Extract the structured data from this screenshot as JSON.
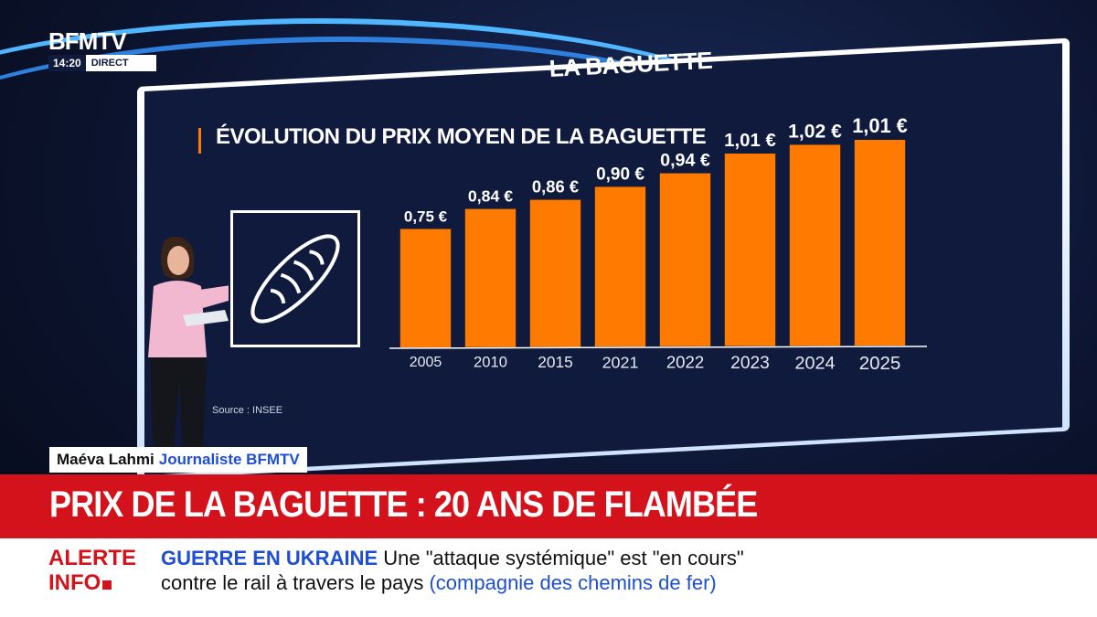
{
  "channel": {
    "name": "BFMTV",
    "time": "14:20",
    "live_label": "DIRECT"
  },
  "screen": {
    "super_title": "LA BAGUETTE",
    "source": "Source : INSEE"
  },
  "chart_data": {
    "type": "bar",
    "title": "ÉVOLUTION DU PRIX MOYEN DE LA BAGUETTE",
    "categories": [
      "2005",
      "2010",
      "2015",
      "2021",
      "2022",
      "2023",
      "2024",
      "2025"
    ],
    "values": [
      0.75,
      0.84,
      0.86,
      0.9,
      0.94,
      1.01,
      1.02,
      1.01
    ],
    "value_labels": [
      "0,75 €",
      "0,84 €",
      "0,86 €",
      "0,90 €",
      "0,94 €",
      "1,01 €",
      "1,02 €",
      "1,01 €"
    ],
    "bar_color": "#ff7a00",
    "ylim": [
      0,
      1.1
    ],
    "grid": false,
    "xlabel": "",
    "ylabel": ""
  },
  "lower_third": {
    "name": "Maéva Lahmi",
    "role": "Journaliste BFMTV",
    "headline": "PRIX DE LA BAGUETTE : 20 ANS DE FLAMBÉE"
  },
  "ticker": {
    "alert_line1": "ALERTE",
    "alert_line2": "INFO",
    "topic": "GUERRE EN UKRAINE",
    "text1": "Une \"attaque systémique\" est \"en cours\"",
    "text2": "contre le rail à travers le pays",
    "paren": "(compagnie des chemins de fer)"
  },
  "colors": {
    "accent": "#ff7a00",
    "brand_red": "#d3121b",
    "brand_blue": "#1f4fd1",
    "screen_bg": "#0f1a3d"
  },
  "icons": {
    "bread": "baguette-icon"
  }
}
